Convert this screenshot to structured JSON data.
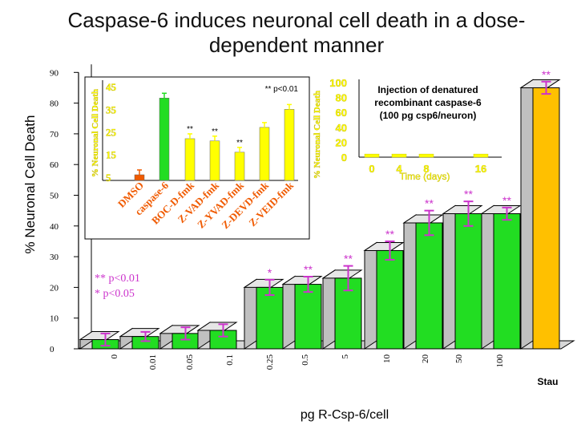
{
  "title": "Caspase-6 induces neuronal cell death in a dose-dependent manner",
  "colors": {
    "green": "#22dd22",
    "gold": "#ffc000",
    "orange": "#f05a00",
    "yellow": "#ffff00",
    "grey": "#c0c0c0",
    "magenta": "#cc33cc"
  },
  "chart_data": [
    {
      "name": "main",
      "type": "bar",
      "title": "Caspase-6 induces neuronal cell death in a dose-dependent manner",
      "xlabel": "pg R-Csp-6/cell",
      "ylabel": "% Neuronal Cell Death",
      "ylim": [
        0,
        90
      ],
      "yticks": [
        "0",
        "10",
        "20",
        "30",
        "40",
        "50",
        "60",
        "70",
        "80",
        "90"
      ],
      "categories": [
        "0",
        "0.01",
        "0.05",
        "0.1",
        "0.25",
        "0.5",
        "5",
        "10",
        "20",
        "50",
        "100",
        "Stau"
      ],
      "values": [
        3,
        4,
        5,
        6,
        20,
        21,
        23,
        32,
        41,
        44,
        44,
        85
      ],
      "errors": [
        2,
        1.5,
        2,
        2,
        2.5,
        2.5,
        4,
        3,
        4,
        4,
        2,
        2
      ],
      "significance": [
        "",
        "",
        "",
        "",
        "*",
        "**",
        "**",
        "**",
        "**",
        "**",
        "**",
        "**"
      ],
      "legend_lines": [
        "** p<0.01",
        "* p<0.05"
      ]
    },
    {
      "name": "inset-inhibitors",
      "type": "bar",
      "ylabel": "% Neuronal Cell Death",
      "ylim": [
        5,
        45
      ],
      "yticks": [
        "5",
        "15",
        "25",
        "35",
        "45"
      ],
      "categories": [
        "DMSO",
        "caspase-6",
        "BOC-D-fmk",
        "Z-VAD-fmk",
        "Z-YVAD-fmk",
        "Z-DEVD-fmk",
        "Z-VEID-fmk"
      ],
      "values": [
        6,
        40,
        22,
        21,
        16,
        27,
        35
      ],
      "significance": [
        "",
        "",
        "**",
        "**",
        "**",
        "",
        ""
      ],
      "note": "** p<0.01"
    },
    {
      "name": "inset-denatured",
      "type": "bar",
      "title": "Injection of denatured recombinant caspase-6 (100 pg csp6/neuron)",
      "title_lines": [
        "Injection of denatured",
        "recombinant caspase-6",
        "(100 pg csp6/neuron)"
      ],
      "xlabel": "Time (days)",
      "ylabel": "% Neuronal Cell Death",
      "ylim": [
        0,
        100
      ],
      "yticks": [
        "0",
        "20",
        "40",
        "60",
        "80",
        "100"
      ],
      "categories": [
        "0",
        "4",
        "8",
        "16"
      ],
      "x": [
        0,
        4,
        8,
        16
      ],
      "xticks": [
        "0",
        "4",
        "8",
        "16"
      ],
      "values": [
        2,
        2,
        2,
        2
      ]
    }
  ]
}
